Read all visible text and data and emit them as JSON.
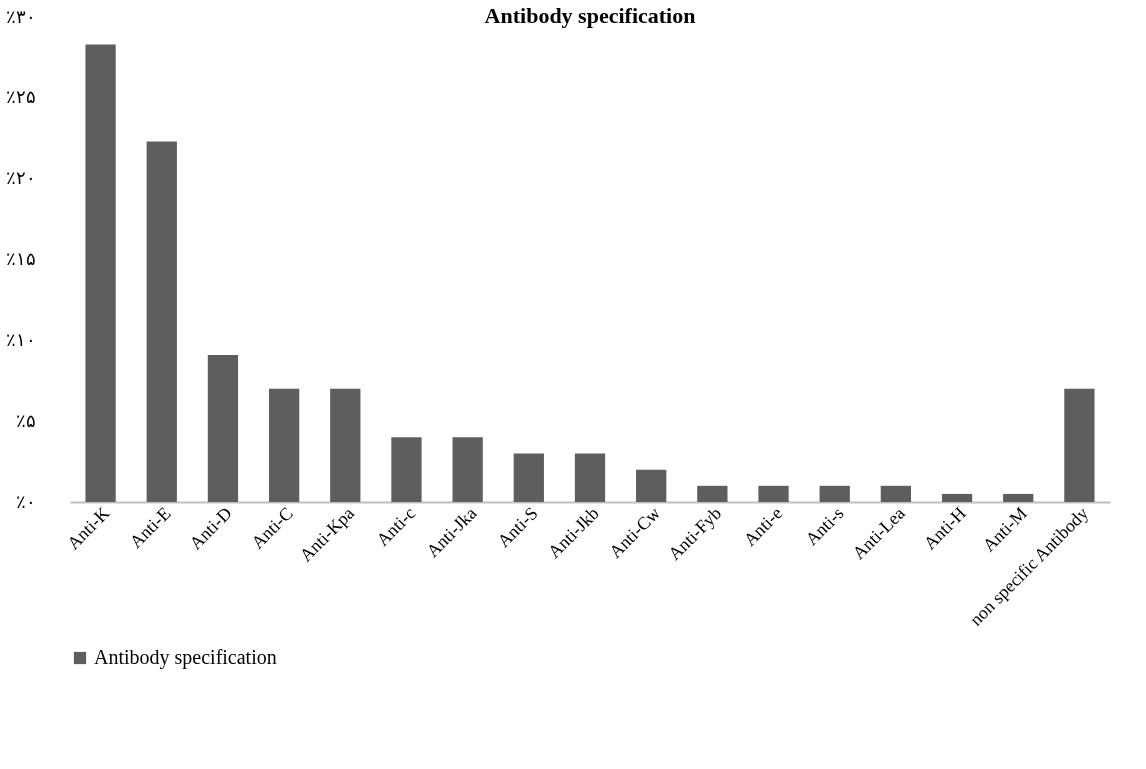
{
  "chart_data": {
    "type": "bar",
    "title": "Antibody specification",
    "categories": [
      "Anti-K",
      "Anti-E",
      "Anti-D",
      "Anti-C",
      "Anti-Kpa",
      "Anti-c",
      "Anti-Jka",
      "Anti-S",
      "Anti-Jkb",
      "Anti-Cw",
      "Anti-Fyb",
      "Anti-e",
      "Anti-s",
      "Anti-Lea",
      "Anti-H",
      "Anti-M",
      "non specific Antibody"
    ],
    "series": [
      {
        "name": "Antibody specification",
        "color": "#5e5e5e",
        "values": [
          28.3,
          22.3,
          9.1,
          7.0,
          7.0,
          4.0,
          4.0,
          3.0,
          3.0,
          2.0,
          1.0,
          1.0,
          1.0,
          1.0,
          0.5,
          0.5,
          7.0
        ]
      }
    ],
    "ylim": [
      0,
      30
    ],
    "yticks": [
      {
        "value": 0,
        "label": "٪۰"
      },
      {
        "value": 5,
        "label": "٪۵"
      },
      {
        "value": 10,
        "label": "٪۱۰"
      },
      {
        "value": 15,
        "label": "٪۱۵"
      },
      {
        "value": 20,
        "label": "٪۲۰"
      },
      {
        "value": 25,
        "label": "٪۲۵"
      },
      {
        "value": 30,
        "label": "٪۳۰"
      }
    ],
    "grid": false,
    "legend": "bottom"
  }
}
